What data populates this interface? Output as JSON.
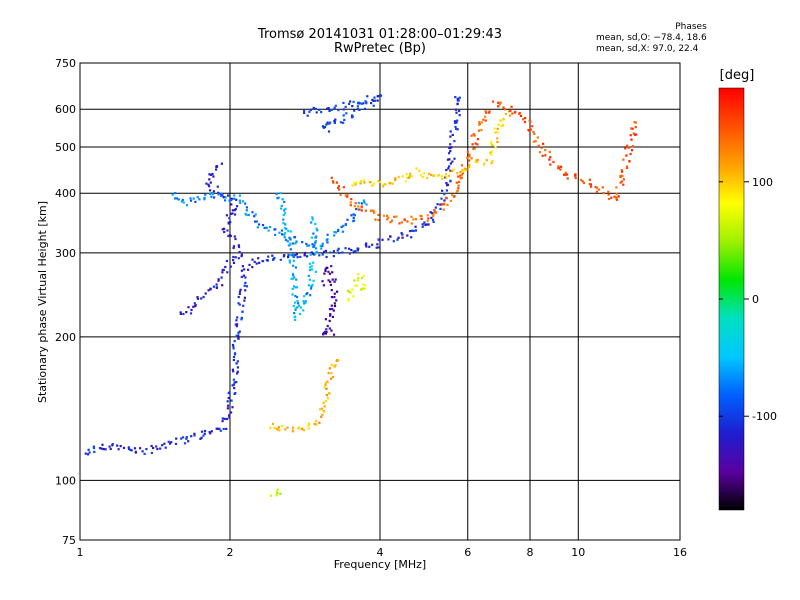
{
  "header": {
    "title_line1": "Tromsø 20141031 01:28:00–01:29:43",
    "title_line2": "RwPretec (Bp)"
  },
  "phase_box": {
    "heading": "Phases",
    "line_o": "mean, sd,O: −78.4, 18.6",
    "line_x": "mean, sd,X:  97.0, 22.4"
  },
  "colorbar": {
    "unit": "[deg]",
    "range": [
      -180,
      180
    ],
    "ticks": [
      {
        "value": 100,
        "label": "100"
      },
      {
        "value": 0,
        "label": "0"
      },
      {
        "value": -100,
        "label": "-100"
      }
    ],
    "stops": [
      "#000000",
      "#5a00a0",
      "#1e1ecf",
      "#0060ff",
      "#00c8ff",
      "#00e0c0",
      "#00e600",
      "#a0f000",
      "#ffff00",
      "#ffa000",
      "#ff5000",
      "#ff0000"
    ]
  },
  "chart_data": {
    "type": "scatter",
    "xlabel": "Frequency [MHz]",
    "ylabel": "Stationary phase Virtual Height [km]",
    "xscale": "log",
    "yscale": "log",
    "xlim": [
      1,
      16
    ],
    "ylim": [
      75,
      750
    ],
    "x_ticks": [
      1,
      2,
      4,
      6,
      8,
      10,
      16
    ],
    "y_ticks": [
      75,
      100,
      200,
      300,
      400,
      500,
      600,
      750
    ],
    "grid": true,
    "color_by": "phase [deg]",
    "traces": [
      {
        "phase": -110,
        "points": [
          [
            1.0,
            113
          ],
          [
            1.1,
            118
          ],
          [
            1.2,
            118
          ],
          [
            1.35,
            115
          ],
          [
            1.5,
            119
          ],
          [
            1.7,
            124
          ],
          [
            1.85,
            127
          ],
          [
            1.95,
            130
          ],
          [
            2.02,
            150
          ],
          [
            2.06,
            190
          ],
          [
            2.1,
            230
          ],
          [
            2.15,
            280
          ],
          [
            2.3,
            292
          ],
          [
            2.7,
            295
          ],
          [
            3.1,
            298
          ],
          [
            3.6,
            305
          ],
          [
            4.0,
            315
          ],
          [
            4.6,
            330
          ],
          [
            5.0,
            345
          ],
          [
            5.3,
            380
          ],
          [
            5.5,
            440
          ],
          [
            5.65,
            550
          ],
          [
            5.75,
            640
          ]
        ]
      },
      {
        "phase": -120,
        "points": [
          [
            1.6,
            220
          ],
          [
            1.75,
            240
          ],
          [
            1.9,
            260
          ],
          [
            2.0,
            285
          ],
          [
            2.1,
            300
          ],
          [
            1.95,
            340
          ],
          [
            2.05,
            380
          ],
          [
            1.8,
            420
          ],
          [
            1.9,
            460
          ]
        ]
      },
      {
        "phase": -75,
        "points": [
          [
            1.55,
            400
          ],
          [
            1.6,
            380
          ],
          [
            1.7,
            390
          ],
          [
            1.8,
            395
          ],
          [
            2.1,
            390
          ],
          [
            2.15,
            370
          ],
          [
            2.25,
            350
          ],
          [
            2.5,
            330
          ],
          [
            2.7,
            320
          ],
          [
            3.0,
            310
          ],
          [
            3.3,
            330
          ],
          [
            3.5,
            350
          ],
          [
            3.7,
            385
          ]
        ]
      },
      {
        "phase": -60,
        "points": [
          [
            2.5,
            400
          ],
          [
            2.6,
            350
          ],
          [
            2.65,
            300
          ],
          [
            2.7,
            250
          ],
          [
            2.7,
            220
          ],
          [
            2.9,
            250
          ],
          [
            2.95,
            300
          ],
          [
            2.95,
            350
          ]
        ]
      },
      {
        "phase": -100,
        "points": [
          [
            2.8,
            590
          ],
          [
            3.1,
            600
          ],
          [
            3.4,
            610
          ],
          [
            3.7,
            625
          ],
          [
            4.0,
            635
          ],
          [
            3.1,
            545
          ],
          [
            3.2,
            560
          ]
        ]
      },
      {
        "phase": -140,
        "points": [
          [
            3.1,
            260
          ],
          [
            3.15,
            280
          ],
          [
            3.2,
            270
          ],
          [
            3.25,
            250
          ],
          [
            3.1,
            200
          ],
          [
            3.2,
            205
          ]
        ]
      },
      {
        "phase": 110,
        "points": [
          [
            2.4,
            130
          ],
          [
            2.6,
            128
          ],
          [
            2.9,
            130
          ],
          [
            3.05,
            135
          ],
          [
            3.1,
            145
          ],
          [
            3.15,
            160
          ],
          [
            3.2,
            170
          ],
          [
            3.25,
            180
          ]
        ]
      },
      {
        "phase": 70,
        "points": [
          [
            3.45,
            240
          ],
          [
            3.5,
            250
          ],
          [
            3.55,
            260
          ],
          [
            3.65,
            270
          ],
          [
            3.7,
            250
          ]
        ]
      },
      {
        "phase": 140,
        "points": [
          [
            3.2,
            430
          ],
          [
            3.4,
            395
          ],
          [
            3.7,
            370
          ],
          [
            4.0,
            355
          ],
          [
            4.5,
            350
          ],
          [
            5.0,
            355
          ],
          [
            5.3,
            370
          ],
          [
            5.6,
            395
          ],
          [
            5.8,
            430
          ],
          [
            6.0,
            470
          ],
          [
            6.2,
            520
          ],
          [
            6.4,
            560
          ],
          [
            6.6,
            600
          ]
        ]
      },
      {
        "phase": 100,
        "points": [
          [
            3.5,
            420
          ],
          [
            4.2,
            420
          ],
          [
            4.8,
            445
          ],
          [
            5.2,
            430
          ],
          [
            6.6,
            470
          ],
          [
            6.8,
            520
          ],
          [
            7.0,
            560
          ],
          [
            7.2,
            590
          ]
        ]
      },
      {
        "phase": 150,
        "points": [
          [
            6.8,
            620
          ],
          [
            7.3,
            600
          ],
          [
            7.8,
            580
          ],
          [
            8.2,
            520
          ],
          [
            8.8,
            470
          ],
          [
            9.5,
            440
          ],
          [
            12.0,
            390
          ],
          [
            13.0,
            560
          ]
        ]
      },
      {
        "phase": 60,
        "points": [
          [
            2.45,
            92
          ],
          [
            2.5,
            95
          ]
        ]
      }
    ]
  }
}
